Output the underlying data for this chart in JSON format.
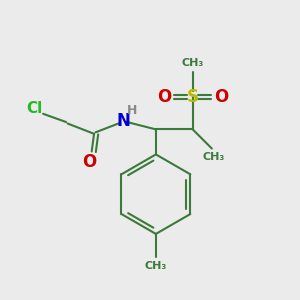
{
  "background_color": "#ebebeb",
  "bond_color": "#3a7a3a",
  "bond_width": 1.5,
  "cl_color": "#22bb22",
  "o_color": "#cc0000",
  "n_color": "#0000cc",
  "s_color": "#bbbb00",
  "h_color": "#888888",
  "figsize": [
    3.0,
    3.0
  ],
  "dpi": 100,
  "xlim": [
    0,
    10
  ],
  "ylim": [
    0,
    10
  ]
}
